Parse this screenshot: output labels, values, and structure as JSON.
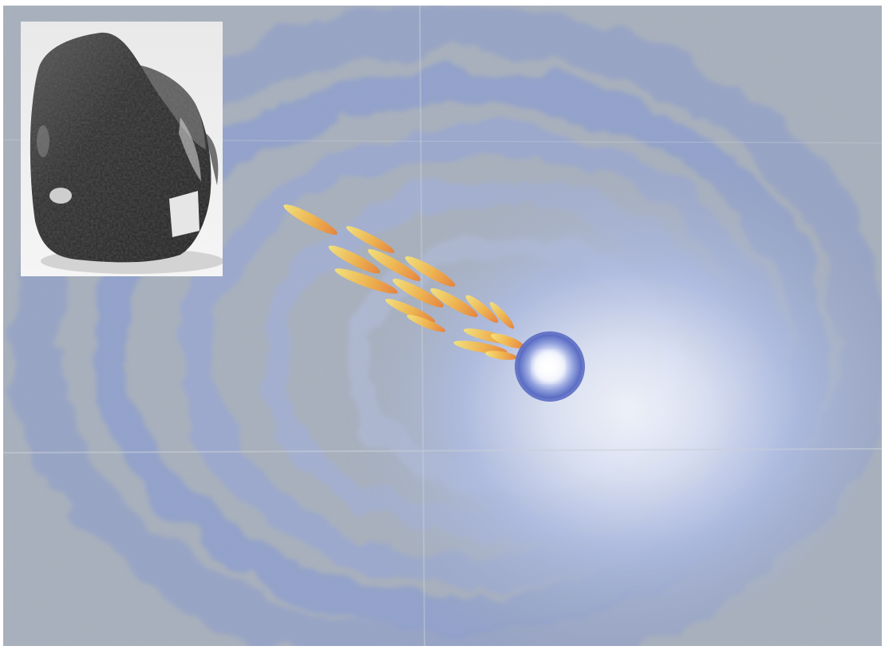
{
  "artwork": {
    "subject": "watercolor-comet-painting",
    "colors": {
      "paper": "#a3acb9",
      "wash_blue": "#7f93d6",
      "glow_center": "#f4f7ff",
      "comet_orb_ring": "#5f72c6",
      "flame_yellow": "#f3d85a",
      "flame_orange": "#e98b3c"
    }
  },
  "inset": {
    "subject": "meteorite-rock-photo",
    "label_fragment": "",
    "colors": {
      "background": "#eeeeee",
      "rock_dark": "#2b2b2b",
      "rock_highlight": "#bdbdbd"
    }
  }
}
